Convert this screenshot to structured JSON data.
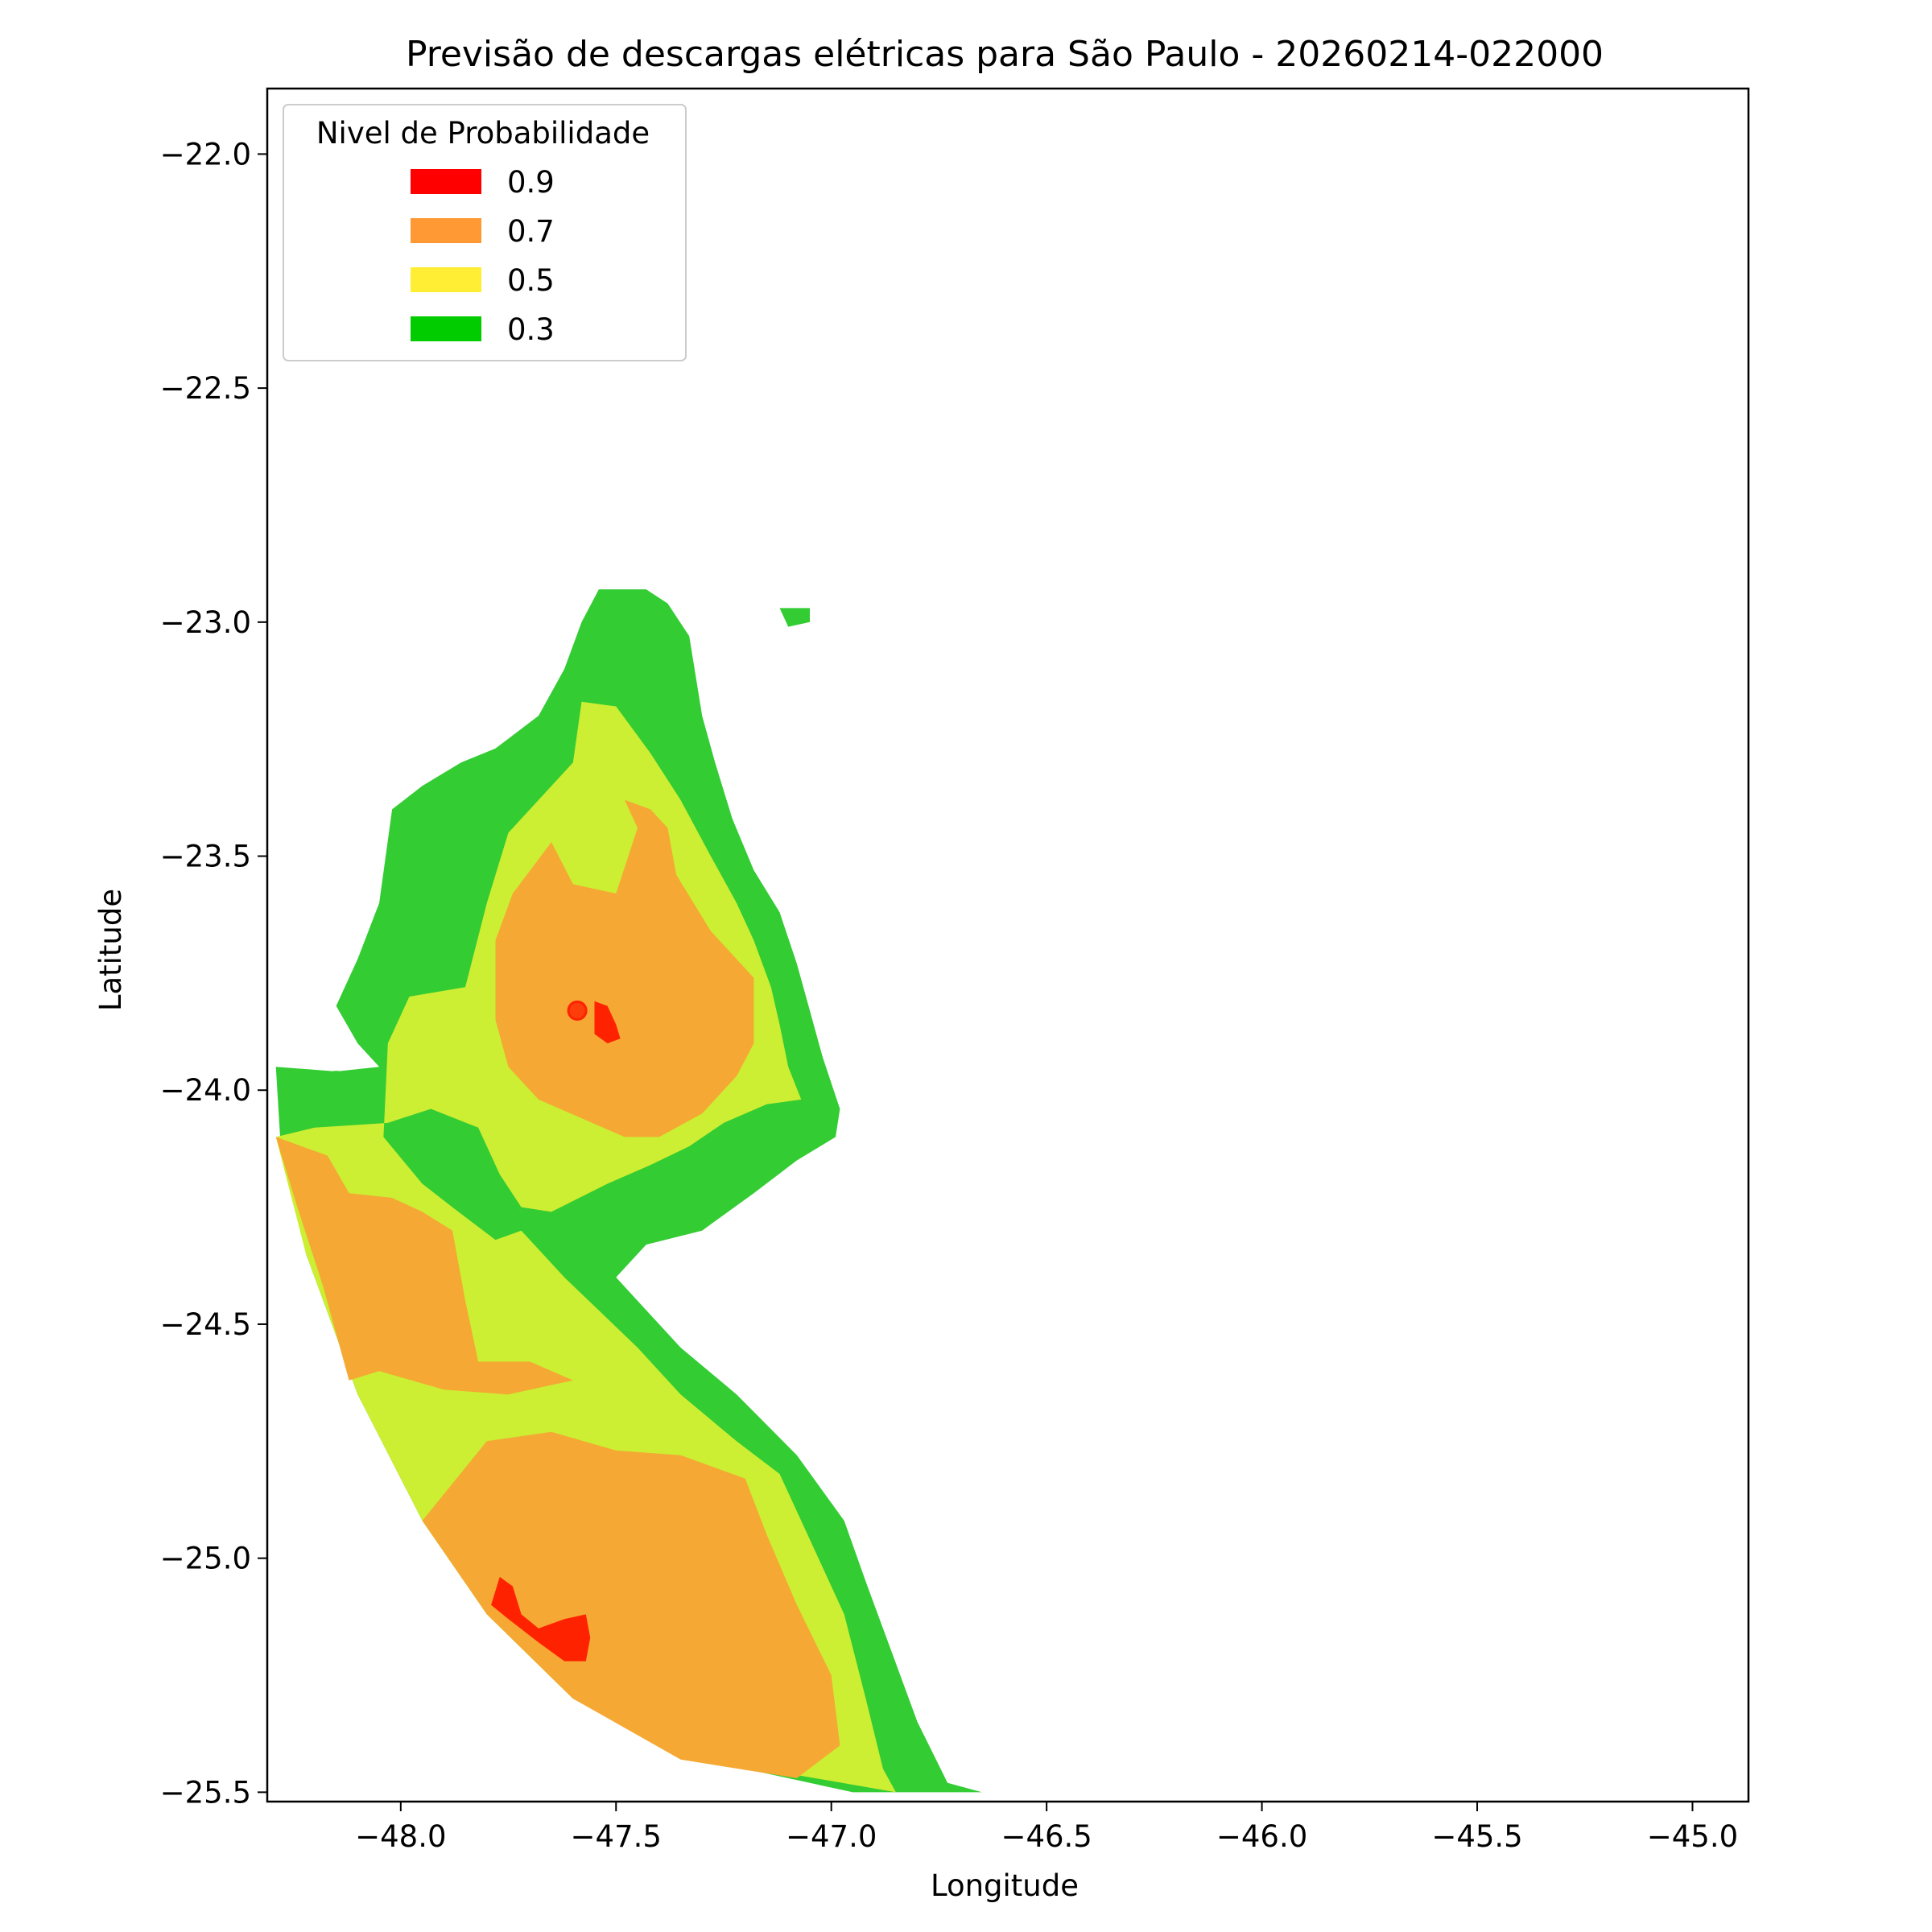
{
  "chart_data": {
    "type": "heatmap",
    "title": "Previsão de descargas elétricas para São Paulo - 20260214-022000",
    "xlabel": "Longitude",
    "ylabel": "Latitude",
    "xlim": [
      -48.31,
      -44.87
    ],
    "ylim": [
      -25.52,
      -21.86
    ],
    "xticks": [
      -48.0,
      -47.5,
      -47.0,
      -46.5,
      -46.0,
      -45.5,
      -45.0
    ],
    "yticks": [
      -22.0,
      -22.5,
      -23.0,
      -23.5,
      -24.0,
      -24.5,
      -25.0,
      -25.5
    ],
    "xtick_labels": [
      "−48.0",
      "−47.5",
      "−47.0",
      "−46.5",
      "−46.0",
      "−45.5",
      "−45.0"
    ],
    "ytick_labels": [
      "−22.0",
      "−22.5",
      "−23.0",
      "−23.5",
      "−24.0",
      "−24.5",
      "−25.0",
      "−25.5"
    ],
    "grid": false,
    "legend": {
      "title": "Nivel de Probabilidade",
      "placement": "upper left",
      "entries": [
        {
          "label": "0.9",
          "color": "#ff0000"
        },
        {
          "label": "0.7",
          "color": "#ff9933"
        },
        {
          "label": "0.5",
          "color": "#ffee33"
        },
        {
          "label": "0.3",
          "color": "#00cc00"
        }
      ]
    },
    "levels": [
      {
        "level": "0.3",
        "color": "#33cc33",
        "polygon": [
          [
            -47.54,
            -22.93
          ],
          [
            -47.43,
            -22.93
          ],
          [
            -47.38,
            -22.96
          ],
          [
            -47.33,
            -23.03
          ],
          [
            -47.3,
            -23.2
          ],
          [
            -47.27,
            -23.3
          ],
          [
            -47.23,
            -23.42
          ],
          [
            -47.18,
            -23.53
          ],
          [
            -47.12,
            -23.62
          ],
          [
            -47.08,
            -23.73
          ],
          [
            -47.05,
            -23.83
          ],
          [
            -47.02,
            -23.93
          ],
          [
            -46.98,
            -24.04
          ],
          [
            -46.99,
            -24.1
          ],
          [
            -47.08,
            -24.15
          ],
          [
            -47.18,
            -24.22
          ],
          [
            -47.3,
            -24.3
          ],
          [
            -47.43,
            -24.33
          ],
          [
            -47.5,
            -24.4
          ],
          [
            -47.45,
            -24.45
          ],
          [
            -47.35,
            -24.55
          ],
          [
            -47.22,
            -24.65
          ],
          [
            -47.08,
            -24.78
          ],
          [
            -46.97,
            -24.92
          ],
          [
            -46.92,
            -25.05
          ],
          [
            -46.86,
            -25.2
          ],
          [
            -46.8,
            -25.35
          ],
          [
            -46.73,
            -25.48
          ],
          [
            -46.65,
            -25.5
          ],
          [
            -46.95,
            -25.5
          ],
          [
            -47.35,
            -25.42
          ],
          [
            -47.6,
            -25.3
          ],
          [
            -47.8,
            -25.12
          ],
          [
            -47.95,
            -24.92
          ],
          [
            -48.1,
            -24.65
          ],
          [
            -48.22,
            -24.35
          ],
          [
            -48.28,
            -24.1
          ],
          [
            -48.29,
            -23.95
          ],
          [
            -48.15,
            -23.96
          ],
          [
            -48.05,
            -23.95
          ],
          [
            -48.1,
            -23.9
          ],
          [
            -48.15,
            -23.82
          ],
          [
            -48.1,
            -23.72
          ],
          [
            -48.05,
            -23.6
          ],
          [
            -48.02,
            -23.4
          ],
          [
            -47.95,
            -23.35
          ],
          [
            -47.86,
            -23.3
          ],
          [
            -47.78,
            -23.27
          ],
          [
            -47.68,
            -23.2
          ],
          [
            -47.62,
            -23.1
          ],
          [
            -47.58,
            -23.0
          ]
        ]
      },
      {
        "level": "0.3",
        "color": "#33cc33",
        "polygon": [
          [
            -47.12,
            -22.97
          ],
          [
            -47.05,
            -22.97
          ],
          [
            -47.05,
            -23.0
          ],
          [
            -47.1,
            -23.01
          ]
        ]
      },
      {
        "level": "0.5",
        "color": "#ccee33",
        "polygon": [
          [
            -47.58,
            -23.17
          ],
          [
            -47.5,
            -23.18
          ],
          [
            -47.42,
            -23.28
          ],
          [
            -47.35,
            -23.38
          ],
          [
            -47.28,
            -23.5
          ],
          [
            -47.22,
            -23.6
          ],
          [
            -47.18,
            -23.68
          ],
          [
            -47.14,
            -23.78
          ],
          [
            -47.12,
            -23.86
          ],
          [
            -47.1,
            -23.95
          ],
          [
            -47.07,
            -24.02
          ],
          [
            -47.15,
            -24.03
          ],
          [
            -47.25,
            -24.07
          ],
          [
            -47.33,
            -24.12
          ],
          [
            -47.42,
            -24.16
          ],
          [
            -47.52,
            -24.2
          ],
          [
            -47.65,
            -24.26
          ],
          [
            -47.72,
            -24.25
          ],
          [
            -47.77,
            -24.18
          ],
          [
            -47.82,
            -24.08
          ],
          [
            -47.93,
            -24.04
          ],
          [
            -48.03,
            -24.07
          ],
          [
            -48.2,
            -24.08
          ],
          [
            -48.29,
            -24.1
          ],
          [
            -48.22,
            -24.35
          ],
          [
            -48.1,
            -24.65
          ],
          [
            -47.95,
            -24.92
          ],
          [
            -47.8,
            -25.12
          ],
          [
            -47.6,
            -25.3
          ],
          [
            -47.35,
            -25.42
          ],
          [
            -46.85,
            -25.5
          ],
          [
            -46.88,
            -25.45
          ],
          [
            -46.92,
            -25.3
          ],
          [
            -46.97,
            -25.12
          ],
          [
            -47.05,
            -24.96
          ],
          [
            -47.12,
            -24.82
          ],
          [
            -47.22,
            -24.75
          ],
          [
            -47.35,
            -24.65
          ],
          [
            -47.45,
            -24.55
          ],
          [
            -47.62,
            -24.4
          ],
          [
            -47.72,
            -24.3
          ],
          [
            -47.78,
            -24.32
          ],
          [
            -47.88,
            -24.25
          ],
          [
            -47.95,
            -24.2
          ],
          [
            -48.04,
            -24.1
          ],
          [
            -48.03,
            -23.9
          ],
          [
            -47.98,
            -23.8
          ],
          [
            -47.85,
            -23.78
          ],
          [
            -47.8,
            -23.6
          ],
          [
            -47.75,
            -23.45
          ],
          [
            -47.68,
            -23.38
          ],
          [
            -47.6,
            -23.3
          ]
        ]
      },
      {
        "level": "0.7",
        "color": "#f5a833",
        "polygon": [
          [
            -47.65,
            -23.47
          ],
          [
            -47.6,
            -23.56
          ],
          [
            -47.5,
            -23.58
          ],
          [
            -47.45,
            -23.44
          ],
          [
            -47.48,
            -23.38
          ],
          [
            -47.42,
            -23.4
          ],
          [
            -47.38,
            -23.44
          ],
          [
            -47.36,
            -23.54
          ],
          [
            -47.28,
            -23.66
          ],
          [
            -47.18,
            -23.76
          ],
          [
            -47.18,
            -23.9
          ],
          [
            -47.22,
            -23.97
          ],
          [
            -47.3,
            -24.05
          ],
          [
            -47.4,
            -24.1
          ],
          [
            -47.48,
            -24.1
          ],
          [
            -47.58,
            -24.06
          ],
          [
            -47.68,
            -24.02
          ],
          [
            -47.75,
            -23.95
          ],
          [
            -47.78,
            -23.85
          ],
          [
            -47.78,
            -23.68
          ],
          [
            -47.74,
            -23.58
          ]
        ]
      },
      {
        "level": "0.7",
        "color": "#f5a833",
        "polygon": [
          [
            -48.29,
            -24.1
          ],
          [
            -48.17,
            -24.14
          ],
          [
            -48.12,
            -24.22
          ],
          [
            -48.02,
            -24.23
          ],
          [
            -47.95,
            -24.26
          ],
          [
            -47.88,
            -24.3
          ],
          [
            -47.85,
            -24.45
          ],
          [
            -47.82,
            -24.58
          ],
          [
            -47.7,
            -24.58
          ],
          [
            -47.6,
            -24.62
          ],
          [
            -47.75,
            -24.65
          ],
          [
            -47.9,
            -24.64
          ],
          [
            -48.05,
            -24.6
          ],
          [
            -48.12,
            -24.62
          ],
          [
            -48.18,
            -24.42
          ],
          [
            -48.24,
            -24.25
          ]
        ]
      },
      {
        "level": "0.7",
        "color": "#f5a833",
        "polygon": [
          [
            -47.8,
            -24.75
          ],
          [
            -47.65,
            -24.73
          ],
          [
            -47.5,
            -24.77
          ],
          [
            -47.35,
            -24.78
          ],
          [
            -47.2,
            -24.83
          ],
          [
            -47.15,
            -24.95
          ],
          [
            -47.08,
            -25.1
          ],
          [
            -47.0,
            -25.25
          ],
          [
            -46.98,
            -25.4
          ],
          [
            -47.08,
            -25.47
          ],
          [
            -47.35,
            -25.43
          ],
          [
            -47.6,
            -25.3
          ],
          [
            -47.8,
            -25.12
          ],
          [
            -47.95,
            -24.92
          ]
        ]
      },
      {
        "level": "0.9",
        "color": "#ff2200",
        "polygon": [
          [
            -47.77,
            -25.04
          ],
          [
            -47.74,
            -25.06
          ],
          [
            -47.72,
            -25.12
          ],
          [
            -47.68,
            -25.15
          ],
          [
            -47.62,
            -25.13
          ],
          [
            -47.57,
            -25.12
          ],
          [
            -47.56,
            -25.17
          ],
          [
            -47.57,
            -25.22
          ],
          [
            -47.62,
            -25.22
          ],
          [
            -47.68,
            -25.18
          ],
          [
            -47.75,
            -25.13
          ],
          [
            -47.79,
            -25.1
          ]
        ]
      },
      {
        "level": "0.9",
        "color": "#ff2200",
        "polygon": [
          [
            -47.55,
            -23.81
          ],
          [
            -47.52,
            -23.82
          ],
          [
            -47.5,
            -23.86
          ],
          [
            -47.49,
            -23.89
          ],
          [
            -47.52,
            -23.9
          ],
          [
            -47.55,
            -23.88
          ]
        ]
      }
    ],
    "points": [
      {
        "lon": -47.59,
        "lat": -23.83,
        "color": "#ff2200"
      },
      {
        "lon": -48.15,
        "lat": -23.98,
        "color": "#33cc33"
      }
    ]
  }
}
